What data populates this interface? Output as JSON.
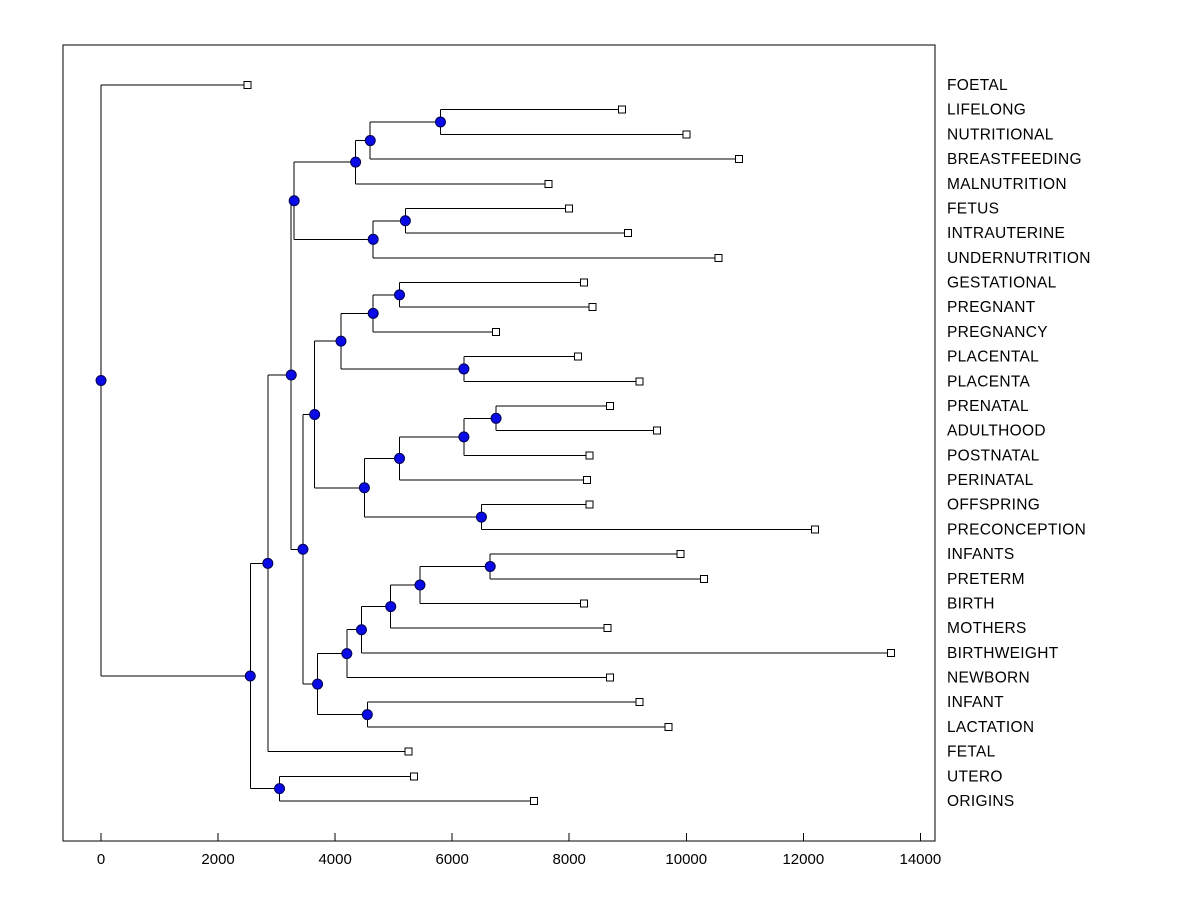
{
  "chart_data": {
    "type": "dendrogram",
    "title": "",
    "xlabel": "",
    "ylabel": "",
    "orientation": "horizontal-leaves-right",
    "grid": false,
    "legend": "none",
    "xlim": [
      -650,
      14250
    ],
    "x_ticks": [
      0,
      2000,
      4000,
      6000,
      8000,
      10000,
      12000,
      14000
    ],
    "leaves": [
      {
        "id": "L1",
        "label": "FOETAL",
        "x": 2500
      },
      {
        "id": "L2",
        "label": "LIFELONG",
        "x": 8900
      },
      {
        "id": "L3",
        "label": "NUTRITIONAL",
        "x": 10000
      },
      {
        "id": "L4",
        "label": "BREASTFEEDING",
        "x": 10900
      },
      {
        "id": "L5",
        "label": "MALNUTRITION",
        "x": 7650
      },
      {
        "id": "L6",
        "label": "FETUS",
        "x": 8000
      },
      {
        "id": "L7",
        "label": "INTRAUTERINE",
        "x": 9000
      },
      {
        "id": "L8",
        "label": "UNDERNUTRITION",
        "x": 10550
      },
      {
        "id": "L9",
        "label": "GESTATIONAL",
        "x": 8250
      },
      {
        "id": "L10",
        "label": "PREGNANT",
        "x": 8400
      },
      {
        "id": "L11",
        "label": "PREGNANCY",
        "x": 6750
      },
      {
        "id": "L12",
        "label": "PLACENTAL",
        "x": 8150
      },
      {
        "id": "L13",
        "label": "PLACENTA",
        "x": 9200
      },
      {
        "id": "L14",
        "label": "PRENATAL",
        "x": 8700
      },
      {
        "id": "L15",
        "label": "ADULTHOOD",
        "x": 9500
      },
      {
        "id": "L16",
        "label": "POSTNATAL",
        "x": 8350
      },
      {
        "id": "L17",
        "label": "PERINATAL",
        "x": 8300
      },
      {
        "id": "L18",
        "label": "OFFSPRING",
        "x": 8350
      },
      {
        "id": "L19",
        "label": "PRECONCEPTION",
        "x": 12200
      },
      {
        "id": "L20",
        "label": "INFANTS",
        "x": 9900
      },
      {
        "id": "L21",
        "label": "PRETERM",
        "x": 10300
      },
      {
        "id": "L22",
        "label": "BIRTH",
        "x": 8250
      },
      {
        "id": "L23",
        "label": "MOTHERS",
        "x": 8650
      },
      {
        "id": "L24",
        "label": "BIRTHWEIGHT",
        "x": 13500
      },
      {
        "id": "L25",
        "label": "NEWBORN",
        "x": 8700
      },
      {
        "id": "L26",
        "label": "INFANT",
        "x": 9200
      },
      {
        "id": "L27",
        "label": "LACTATION",
        "x": 9700
      },
      {
        "id": "L28",
        "label": "FETAL",
        "x": 5250
      },
      {
        "id": "L29",
        "label": "UTERO",
        "x": 5350
      },
      {
        "id": "L30",
        "label": "ORIGINS",
        "x": 7400
      }
    ],
    "internal_nodes": [
      {
        "id": "n1",
        "x": 5800,
        "children": [
          "L2",
          "L3"
        ]
      },
      {
        "id": "n2",
        "x": 4600,
        "children": [
          "n1",
          "L4"
        ]
      },
      {
        "id": "n3",
        "x": 4350,
        "children": [
          "n2",
          "L5"
        ]
      },
      {
        "id": "n4",
        "x": 5200,
        "children": [
          "L6",
          "L7"
        ]
      },
      {
        "id": "n5",
        "x": 4650,
        "children": [
          "n4",
          "L8"
        ]
      },
      {
        "id": "n6",
        "x": 3300,
        "children": [
          "n3",
          "n5"
        ]
      },
      {
        "id": "n7",
        "x": 5100,
        "children": [
          "L9",
          "L10"
        ]
      },
      {
        "id": "n8",
        "x": 4650,
        "children": [
          "n7",
          "L11"
        ]
      },
      {
        "id": "n9",
        "x": 6200,
        "children": [
          "L12",
          "L13"
        ]
      },
      {
        "id": "n10",
        "x": 4100,
        "children": [
          "n8",
          "n9"
        ]
      },
      {
        "id": "n11",
        "x": 6750,
        "children": [
          "L14",
          "L15"
        ]
      },
      {
        "id": "n12",
        "x": 6200,
        "children": [
          "n11",
          "L16"
        ]
      },
      {
        "id": "n13",
        "x": 5100,
        "children": [
          "n12",
          "L17"
        ]
      },
      {
        "id": "n14",
        "x": 6500,
        "children": [
          "L18",
          "L19"
        ]
      },
      {
        "id": "n15",
        "x": 4500,
        "children": [
          "n13",
          "n14"
        ]
      },
      {
        "id": "n16",
        "x": 3650,
        "children": [
          "n10",
          "n15"
        ]
      },
      {
        "id": "n17",
        "x": 6650,
        "children": [
          "L20",
          "L21"
        ]
      },
      {
        "id": "n18",
        "x": 5450,
        "children": [
          "n17",
          "L22"
        ]
      },
      {
        "id": "n19",
        "x": 4950,
        "children": [
          "n18",
          "L23"
        ]
      },
      {
        "id": "n20",
        "x": 4450,
        "children": [
          "n19",
          "L24"
        ]
      },
      {
        "id": "n21",
        "x": 4200,
        "children": [
          "n20",
          "L25"
        ]
      },
      {
        "id": "n22",
        "x": 4550,
        "children": [
          "L26",
          "L27"
        ]
      },
      {
        "id": "n23",
        "x": 3700,
        "children": [
          "n21",
          "n22"
        ]
      },
      {
        "id": "n24",
        "x": 3450,
        "children": [
          "n16",
          "n23"
        ]
      },
      {
        "id": "n25",
        "x": 3250,
        "children": [
          "n6",
          "n24"
        ]
      },
      {
        "id": "n26",
        "x": 2850,
        "children": [
          "n25",
          "L28"
        ]
      },
      {
        "id": "n27",
        "x": 3050,
        "children": [
          "L29",
          "L30"
        ]
      },
      {
        "id": "n28",
        "x": 2550,
        "children": [
          "n26",
          "n27"
        ]
      },
      {
        "id": "root",
        "x": 0,
        "children": [
          "L1",
          "n28"
        ]
      }
    ],
    "colors": {
      "line": "#000000",
      "internal_node_fill": "#0a0ae6",
      "internal_node_stroke": "#000050",
      "leaf_marker_fill": "#ffffff",
      "marker_stroke": "#000000",
      "background": "#ffffff"
    }
  }
}
